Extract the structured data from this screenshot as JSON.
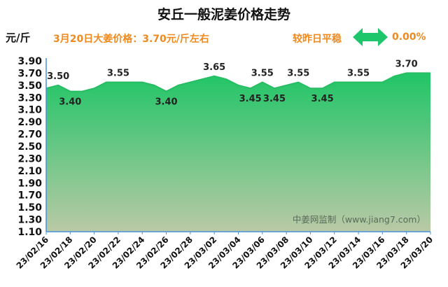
{
  "header": {
    "title": "安丘一般泥姜价格走势",
    "unit": "元/斤",
    "price_text": "3月20日大姜价格：3.70元/斤左右",
    "compare_text": "较昨日平稳",
    "change_pct": "0.00%",
    "arrow_icon": "left-right-arrow-icon"
  },
  "colors": {
    "accent_orange": "#ee8a1f",
    "arrow_green": "#1ec66b",
    "fill_top": "#20c567",
    "fill_bottom": "#b9c9a6",
    "line": "#27bd62"
  },
  "watermark": "中姜网监制（www.jiang7.com）",
  "chart_data": {
    "type": "area",
    "title": "安丘一般泥姜价格走势",
    "ylabel": "元/斤",
    "ylim": [
      1.1,
      3.9
    ],
    "yticks": [
      "3.90",
      "3.70",
      "3.50",
      "3.30",
      "3.10",
      "2.90",
      "2.70",
      "2.50",
      "2.30",
      "2.10",
      "1.90",
      "1.70",
      "1.50",
      "1.30",
      "1.10"
    ],
    "grid": false,
    "x": [
      "23/02/16",
      "23/02/17",
      "23/02/18",
      "23/02/19",
      "23/02/20",
      "23/02/21",
      "23/02/22",
      "23/02/23",
      "23/02/24",
      "23/02/25",
      "23/02/26",
      "23/02/27",
      "23/02/28",
      "23/03/01",
      "23/03/02",
      "23/03/03",
      "23/03/04",
      "23/03/05",
      "23/03/06",
      "23/03/07",
      "23/03/08",
      "23/03/09",
      "23/03/10",
      "23/03/11",
      "23/03/12",
      "23/03/13",
      "23/03/14",
      "23/03/15",
      "23/03/16",
      "23/03/17",
      "23/03/18",
      "23/03/19",
      "23/03/20"
    ],
    "xtick_labels": [
      "23/02/16",
      "23/02/18",
      "23/02/20",
      "23/02/22",
      "23/02/24",
      "23/02/26",
      "23/02/28",
      "23/03/02",
      "23/03/04",
      "23/03/06",
      "23/03/08",
      "23/03/10",
      "23/03/12",
      "23/03/14",
      "23/03/16",
      "23/03/18",
      "23/03/20"
    ],
    "values": [
      3.45,
      3.5,
      3.4,
      3.4,
      3.45,
      3.55,
      3.55,
      3.55,
      3.55,
      3.5,
      3.4,
      3.5,
      3.55,
      3.6,
      3.65,
      3.6,
      3.5,
      3.45,
      3.55,
      3.45,
      3.5,
      3.55,
      3.45,
      3.45,
      3.55,
      3.55,
      3.55,
      3.55,
      3.55,
      3.65,
      3.7,
      3.7,
      3.7
    ],
    "data_labels": [
      {
        "index": 1,
        "text": "3.50",
        "pos": "above"
      },
      {
        "index": 2,
        "text": "3.40",
        "pos": "below"
      },
      {
        "index": 6,
        "text": "3.55",
        "pos": "above"
      },
      {
        "index": 10,
        "text": "3.40",
        "pos": "below"
      },
      {
        "index": 14,
        "text": "3.65",
        "pos": "above"
      },
      {
        "index": 17,
        "text": "3.45",
        "pos": "below"
      },
      {
        "index": 18,
        "text": "3.55",
        "pos": "above"
      },
      {
        "index": 19,
        "text": "3.45",
        "pos": "below"
      },
      {
        "index": 21,
        "text": "3.55",
        "pos": "above"
      },
      {
        "index": 23,
        "text": "3.45",
        "pos": "below"
      },
      {
        "index": 26,
        "text": "3.55",
        "pos": "above"
      },
      {
        "index": 30,
        "text": "3.70",
        "pos": "above"
      }
    ]
  }
}
